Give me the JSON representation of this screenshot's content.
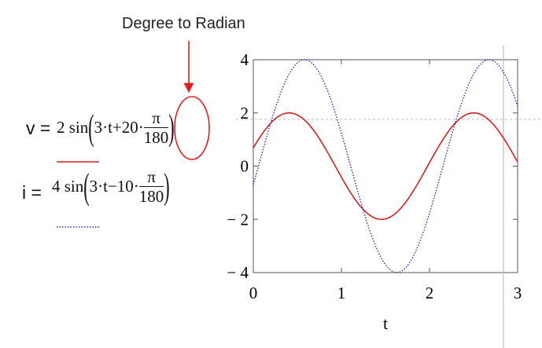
{
  "annotation": {
    "text": "Degree to Radian"
  },
  "equations": {
    "v": {
      "lhs": "v =",
      "coef": "2 sin",
      "inner": "3·t+20·",
      "num": "π",
      "den": "180"
    },
    "i": {
      "lhs": "i =",
      "coef": "4 sin",
      "inner": "3·t−10·",
      "num": "π",
      "den": "180"
    }
  },
  "colors": {
    "v_trace": "#d42020",
    "i_trace": "#2233bb",
    "annotation": "#e02020",
    "cursor": "#bbbbbb"
  },
  "chart_data": {
    "type": "line",
    "title": "",
    "xlabel": "t",
    "ylabel": "",
    "xlim": [
      0,
      3
    ],
    "ylim": [
      -4,
      4
    ],
    "xticks": [
      0,
      1,
      2,
      3
    ],
    "yticks": [
      -4,
      -2,
      0,
      2,
      4
    ],
    "xtick_labels": [
      "0",
      "1",
      "2",
      "3"
    ],
    "ytick_labels": [
      "− 4",
      "− 2",
      "0",
      "2",
      "4"
    ],
    "grid": false,
    "series": [
      {
        "amplitude": 2,
        "omega": 3,
        "phase_deg": 20,
        "style": "solid",
        "color": "#d42020"
      },
      {
        "amplitude": 4,
        "omega": 3,
        "phase_deg": -10,
        "style": "dotted",
        "color": "#2233bb"
      }
    ]
  }
}
